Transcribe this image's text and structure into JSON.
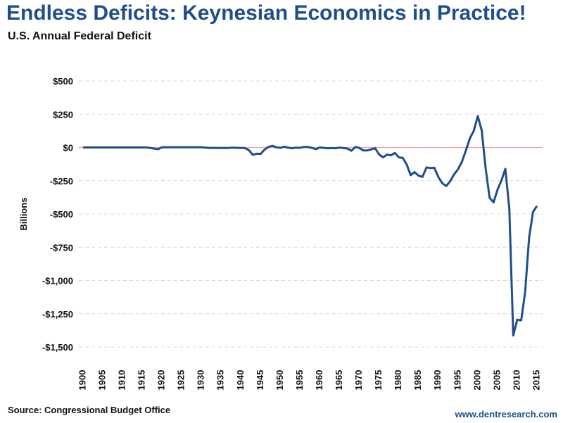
{
  "header": {
    "title": "Endless Deficits: Keynesian Economics in Practice!",
    "subtitle": "U.S. Annual Federal Deficit"
  },
  "footer": {
    "source": "Source: Congressional Budget Office",
    "website": "www.dentresearch.com"
  },
  "colors": {
    "line": "#1f4e8c",
    "zero_line": "#e8a0a0",
    "title": "#1f4e8c"
  },
  "chart_data": {
    "type": "line",
    "title": "Endless Deficits: Keynesian Economics in Practice!",
    "subtitle": "U.S. Annual Federal Deficit",
    "xlabel": "",
    "ylabel": "Billions",
    "xlim": [
      1900,
      2015
    ],
    "ylim": [
      -1500,
      500
    ],
    "y_ticks": [
      500,
      250,
      0,
      -250,
      -500,
      -750,
      -1000,
      -1250,
      -1500
    ],
    "y_tick_labels": [
      "$500",
      "$250",
      "$0",
      "-$250",
      "-$500",
      "-$750",
      "-$1,000",
      "-$1,250",
      "-$1,500"
    ],
    "x_ticks": [
      "1900",
      "1905",
      "1910",
      "1915",
      "1920",
      "1925",
      "1930",
      "1935",
      "1940",
      "1945",
      "1950",
      "1955",
      "1960",
      "1965",
      "1970",
      "1975",
      "1980",
      "1985",
      "1990",
      "1995",
      "2000",
      "2005",
      "2010",
      "2015"
    ],
    "grid": "horizontal dashed",
    "series": [
      {
        "name": "U.S. Annual Federal Deficit",
        "start_year": 1900,
        "values": [
          0,
          0,
          0,
          0,
          0,
          0,
          0,
          0,
          0,
          0,
          0,
          0,
          0,
          0,
          0,
          0,
          0,
          -3,
          -9,
          -13,
          1,
          1,
          1,
          1,
          1,
          1,
          1,
          1,
          1,
          1,
          1,
          -1,
          -3,
          -3,
          -4,
          -3,
          -4,
          -3,
          -1,
          -3,
          -3,
          -5,
          -20,
          -55,
          -47,
          -48,
          -16,
          4,
          12,
          1,
          -3,
          6,
          -2,
          -6,
          -1,
          -3,
          4,
          3,
          -3,
          -13,
          0,
          -3,
          -7,
          -5,
          -6,
          -1,
          -4,
          -9,
          -25,
          3,
          -3,
          -23,
          -23,
          -15,
          -6,
          -53,
          -74,
          -54,
          -59,
          -41,
          -74,
          -79,
          -128,
          -208,
          -185,
          -212,
          -221,
          -150,
          -155,
          -153,
          -221,
          -269,
          -290,
          -255,
          -203,
          -164,
          -107,
          -22,
          69,
          126,
          236,
          128,
          -158,
          -378,
          -413,
          -318,
          -248,
          -161,
          -459,
          -1413,
          -1294,
          -1300,
          -1087,
          -680,
          -485,
          -439
        ]
      }
    ]
  }
}
